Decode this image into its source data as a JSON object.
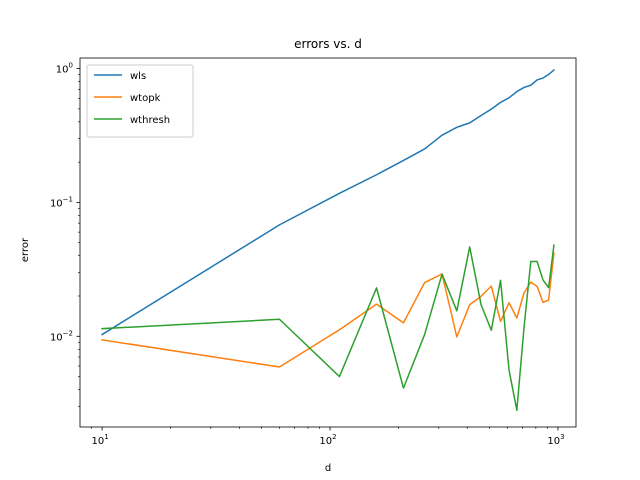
{
  "chart_data": {
    "type": "line",
    "title": "errors vs. d",
    "xlabel": "d",
    "ylabel": "error",
    "xscale": "log",
    "yscale": "log",
    "xlim": [
      8,
      1200
    ],
    "ylim": [
      0.0021,
      1.2
    ],
    "xticks": [
      {
        "value": 10,
        "base": "10",
        "exp": "1"
      },
      {
        "value": 100,
        "base": "10",
        "exp": "2"
      },
      {
        "value": 1000,
        "base": "10",
        "exp": "3"
      }
    ],
    "yticks": [
      {
        "value": 0.01,
        "base": "10",
        "exp": "−2"
      },
      {
        "value": 0.1,
        "base": "10",
        "exp": "−1"
      },
      {
        "value": 1,
        "base": "10",
        "exp": "0"
      }
    ],
    "grid": false,
    "legend": "top-left",
    "series": [
      {
        "name": "wls",
        "color": "#1f77b4",
        "x": [
          10,
          60,
          110,
          160,
          210,
          260,
          310,
          360,
          410,
          460,
          510,
          560,
          610,
          660,
          710,
          760,
          810,
          860,
          910,
          960
        ],
        "y": [
          0.0103,
          0.068,
          0.117,
          0.161,
          0.206,
          0.251,
          0.318,
          0.364,
          0.393,
          0.446,
          0.498,
          0.559,
          0.605,
          0.673,
          0.723,
          0.751,
          0.823,
          0.85,
          0.905,
          0.975
        ]
      },
      {
        "name": "wtopk",
        "color": "#ff7f0e",
        "x": [
          10,
          60,
          110,
          160,
          210,
          260,
          310,
          360,
          410,
          460,
          510,
          560,
          610,
          660,
          710,
          760,
          810,
          860,
          910,
          960
        ],
        "y": [
          0.0094,
          0.0059,
          0.0112,
          0.0174,
          0.0126,
          0.0252,
          0.0292,
          0.0099,
          0.0172,
          0.0199,
          0.0237,
          0.0129,
          0.0178,
          0.0137,
          0.0211,
          0.0254,
          0.0236,
          0.0179,
          0.0187,
          0.0418
        ]
      },
      {
        "name": "wthresh",
        "color": "#2ca02c",
        "x": [
          10,
          60,
          110,
          160,
          210,
          260,
          310,
          360,
          410,
          460,
          510,
          560,
          610,
          660,
          710,
          760,
          810,
          860,
          910,
          960
        ],
        "y": [
          0.0114,
          0.0134,
          0.005,
          0.023,
          0.0041,
          0.0103,
          0.0291,
          0.0155,
          0.0465,
          0.0172,
          0.0111,
          0.0262,
          0.0056,
          0.0028,
          0.0117,
          0.0362,
          0.0362,
          0.0263,
          0.0231,
          0.048
        ]
      }
    ]
  }
}
